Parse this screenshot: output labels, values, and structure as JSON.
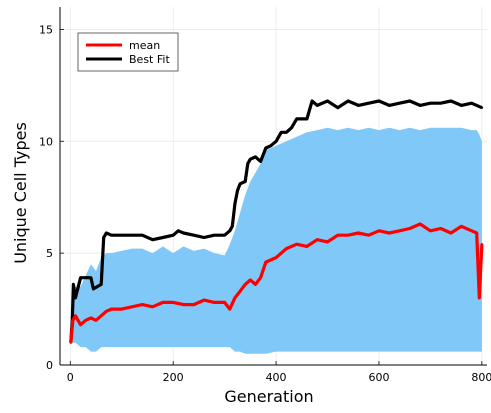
{
  "chart_data": {
    "type": "line",
    "title": "",
    "xlabel": "Generation",
    "ylabel": "Unique Cell Types",
    "xlim": [
      -20,
      810
    ],
    "ylim": [
      0,
      16
    ],
    "xticks": [
      0,
      200,
      400,
      600,
      800
    ],
    "yticks": [
      0,
      5,
      10,
      15
    ],
    "grid": true,
    "legend_position": "top-left",
    "series": [
      {
        "name": "mean",
        "color": "#ff0000",
        "ribbon_color": "#7fc8f8",
        "x": [
          1,
          5,
          10,
          20,
          30,
          40,
          50,
          60,
          70,
          80,
          100,
          120,
          140,
          160,
          180,
          200,
          220,
          240,
          260,
          280,
          300,
          310,
          320,
          330,
          340,
          350,
          360,
          370,
          380,
          400,
          420,
          440,
          460,
          480,
          500,
          520,
          540,
          560,
          580,
          600,
          620,
          640,
          660,
          680,
          700,
          720,
          740,
          760,
          780,
          790,
          795,
          800
        ],
        "y": [
          1.0,
          2.0,
          2.2,
          1.8,
          2.0,
          2.1,
          2.0,
          2.2,
          2.4,
          2.5,
          2.5,
          2.6,
          2.7,
          2.6,
          2.8,
          2.8,
          2.7,
          2.7,
          2.9,
          2.8,
          2.8,
          2.5,
          3.0,
          3.3,
          3.6,
          3.8,
          3.6,
          3.9,
          4.6,
          4.8,
          5.2,
          5.4,
          5.3,
          5.6,
          5.5,
          5.8,
          5.8,
          5.9,
          5.8,
          6.0,
          5.9,
          6.0,
          6.1,
          6.3,
          6.0,
          6.1,
          5.9,
          6.2,
          6.0,
          5.9,
          3.0,
          5.4
        ],
        "lower": [
          1.0,
          1.0,
          1.0,
          0.8,
          0.8,
          0.6,
          0.6,
          0.8,
          0.8,
          0.8,
          0.8,
          0.8,
          0.8,
          0.8,
          0.8,
          0.8,
          0.8,
          0.8,
          0.8,
          0.8,
          0.8,
          0.8,
          0.6,
          0.6,
          0.5,
          0.5,
          0.5,
          0.5,
          0.5,
          0.6,
          0.6,
          0.6,
          0.6,
          0.6,
          0.6,
          0.6,
          0.6,
          0.6,
          0.6,
          0.6,
          0.6,
          0.6,
          0.6,
          0.6,
          0.6,
          0.6,
          0.6,
          0.6,
          0.6,
          0.6,
          0.6,
          0.6
        ],
        "upper": [
          1.0,
          3.0,
          3.5,
          3.5,
          4.0,
          4.5,
          4.2,
          4.8,
          5.0,
          5.0,
          5.1,
          5.2,
          5.2,
          5.0,
          5.3,
          5.0,
          5.3,
          5.1,
          5.2,
          5.0,
          4.9,
          5.4,
          6.0,
          6.8,
          7.6,
          8.2,
          8.6,
          9.0,
          9.6,
          9.8,
          10.0,
          10.2,
          10.4,
          10.5,
          10.6,
          10.5,
          10.6,
          10.5,
          10.6,
          10.5,
          10.6,
          10.5,
          10.6,
          10.5,
          10.6,
          10.6,
          10.6,
          10.6,
          10.5,
          10.5,
          10.3,
          10.0
        ]
      },
      {
        "name": "Best Fit",
        "color": "#000000",
        "x": [
          1,
          4,
          6,
          10,
          20,
          40,
          45,
          60,
          65,
          70,
          80,
          100,
          140,
          160,
          180,
          200,
          210,
          220,
          240,
          260,
          280,
          300,
          310,
          315,
          320,
          325,
          330,
          340,
          345,
          350,
          360,
          370,
          380,
          390,
          400,
          410,
          420,
          430,
          440,
          460,
          470,
          480,
          500,
          520,
          540,
          560,
          580,
          600,
          620,
          640,
          660,
          680,
          700,
          720,
          740,
          760,
          780,
          800
        ],
        "y": [
          1.0,
          2.0,
          3.6,
          3.0,
          3.9,
          3.9,
          3.4,
          3.6,
          5.7,
          5.9,
          5.8,
          5.8,
          5.8,
          5.6,
          5.7,
          5.8,
          6.0,
          5.9,
          5.8,
          5.7,
          5.8,
          5.8,
          6.0,
          6.2,
          7.2,
          7.8,
          8.1,
          8.2,
          9.0,
          9.2,
          9.3,
          9.1,
          9.7,
          9.8,
          10.0,
          10.4,
          10.4,
          10.6,
          11.0,
          11.0,
          11.8,
          11.6,
          11.8,
          11.5,
          11.8,
          11.6,
          11.7,
          11.8,
          11.6,
          11.7,
          11.8,
          11.6,
          11.7,
          11.7,
          11.8,
          11.6,
          11.7,
          11.5
        ]
      }
    ]
  }
}
